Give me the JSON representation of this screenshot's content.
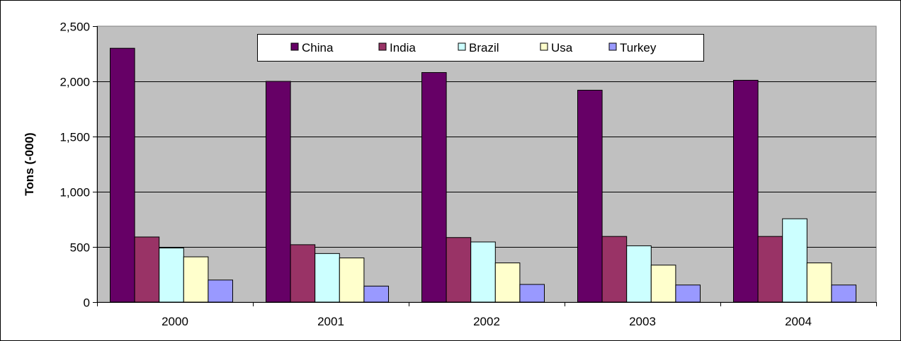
{
  "chart_data": {
    "type": "bar",
    "title": "",
    "xlabel": "",
    "ylabel": "Tons (-000)",
    "categories": [
      "2000",
      "2001",
      "2002",
      "2003",
      "2004"
    ],
    "ylim": [
      0,
      2500
    ],
    "yticks": [
      0,
      500,
      1000,
      1500,
      2000,
      2500
    ],
    "ytick_labels": [
      "0",
      "500",
      "1,000",
      "1,500",
      "2,000",
      "2,500"
    ],
    "grid": true,
    "legend_position": "top-center",
    "plot_background": "#C0C0C0",
    "series": [
      {
        "name": "China",
        "color": "#660066",
        "values": [
          2300,
          2000,
          2080,
          1920,
          2010
        ]
      },
      {
        "name": "India",
        "color": "#993366",
        "values": [
          590,
          520,
          585,
          595,
          595
        ]
      },
      {
        "name": "Brazil",
        "color": "#CCFFFF",
        "values": [
          490,
          440,
          545,
          510,
          755
        ]
      },
      {
        "name": "Usa",
        "color": "#FFFFCC",
        "values": [
          410,
          400,
          355,
          335,
          355
        ]
      },
      {
        "name": "Turkey",
        "color": "#9999FF",
        "values": [
          200,
          145,
          160,
          155,
          155
        ]
      }
    ]
  }
}
